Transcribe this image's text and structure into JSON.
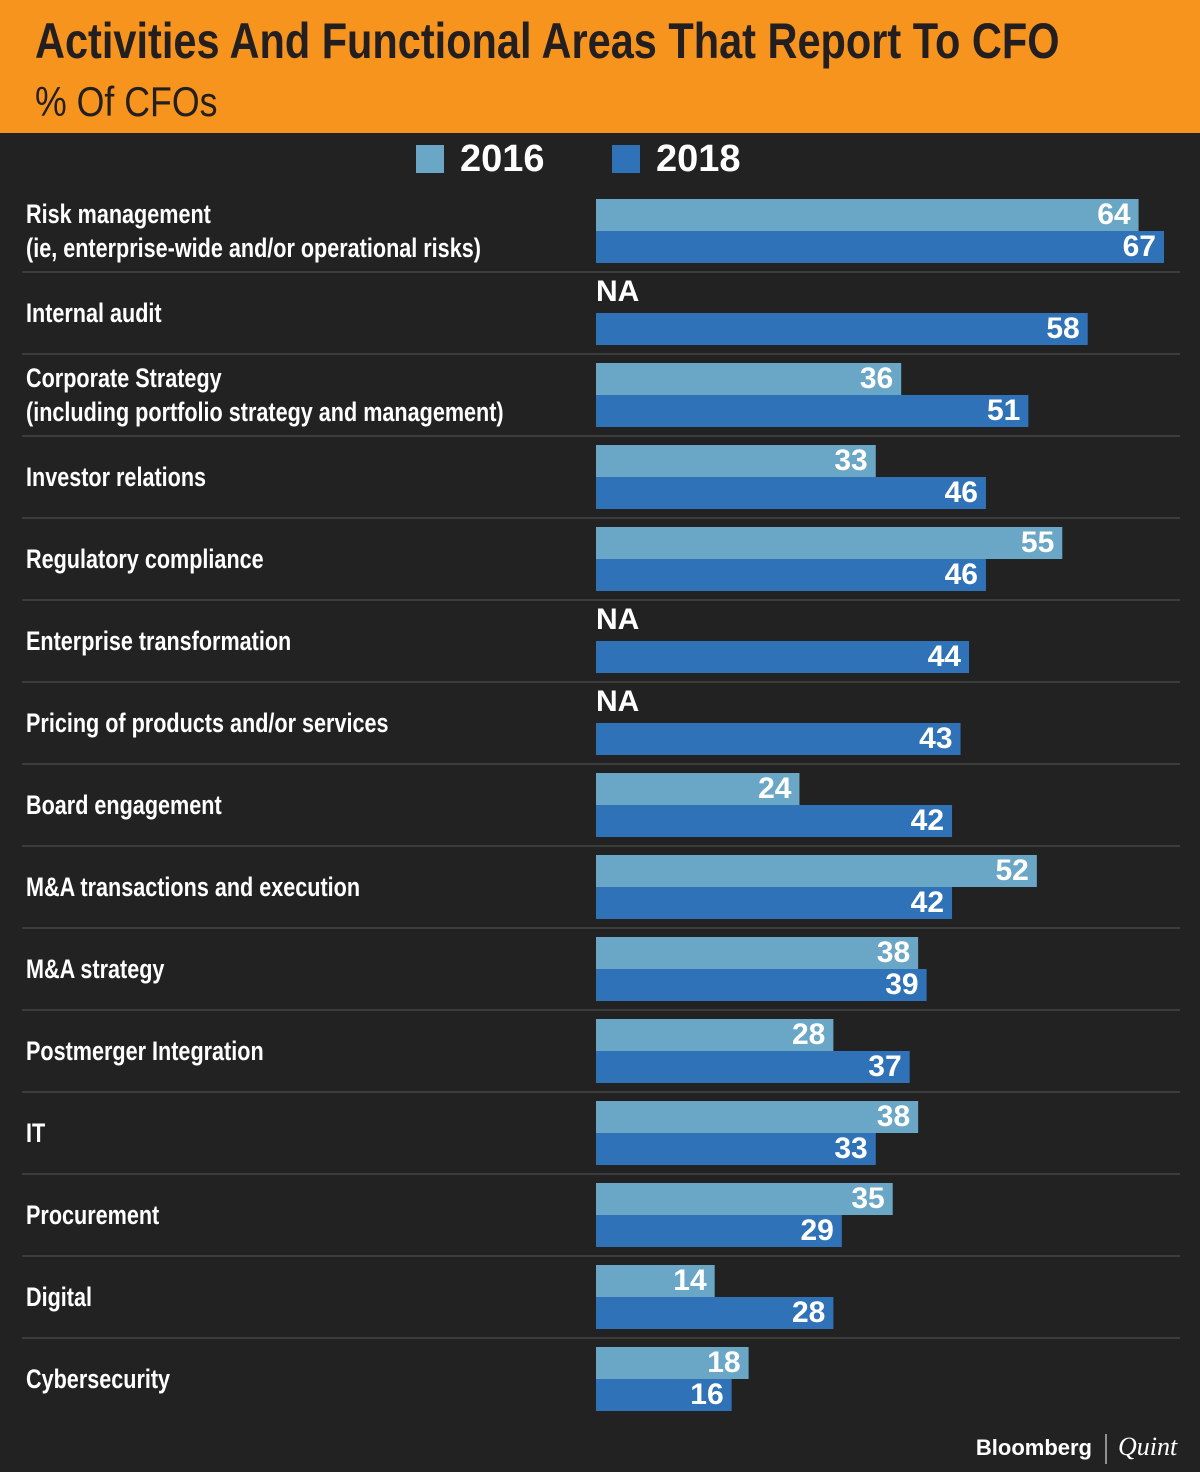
{
  "chart_data": {
    "type": "bar",
    "orientation": "horizontal",
    "title": "Activities And Functional Areas That Report To CFO",
    "subtitle": "% Of CFOs",
    "categories": [
      "Risk management\n(ie, enterprise-wide and/or operational risks)",
      "Internal audit",
      "Corporate Strategy\n(including portfolio strategy and management)",
      "Investor relations",
      "Regulatory compliance",
      "Enterprise transformation",
      "Pricing of products and/or services",
      "Board engagement",
      "M&A transactions and execution",
      "M&A strategy",
      "Postmerger Integration",
      "IT",
      "Procurement",
      "Digital",
      "Cybersecurity"
    ],
    "series": [
      {
        "name": "2016",
        "color": "#6aa7c6",
        "values": [
          64,
          null,
          36,
          33,
          55,
          null,
          null,
          24,
          52,
          38,
          28,
          38,
          35,
          14,
          18
        ],
        "value_labels": [
          "64",
          "NA",
          "36",
          "33",
          "55",
          "NA",
          "NA",
          "24",
          "52",
          "38",
          "28",
          "38",
          "35",
          "14",
          "18"
        ]
      },
      {
        "name": "2018",
        "color": "#2f72b7",
        "values": [
          67,
          58,
          51,
          46,
          46,
          44,
          43,
          42,
          42,
          39,
          37,
          33,
          29,
          28,
          16
        ]
      }
    ],
    "brand": [
      "Bloomberg",
      "Quint"
    ]
  }
}
